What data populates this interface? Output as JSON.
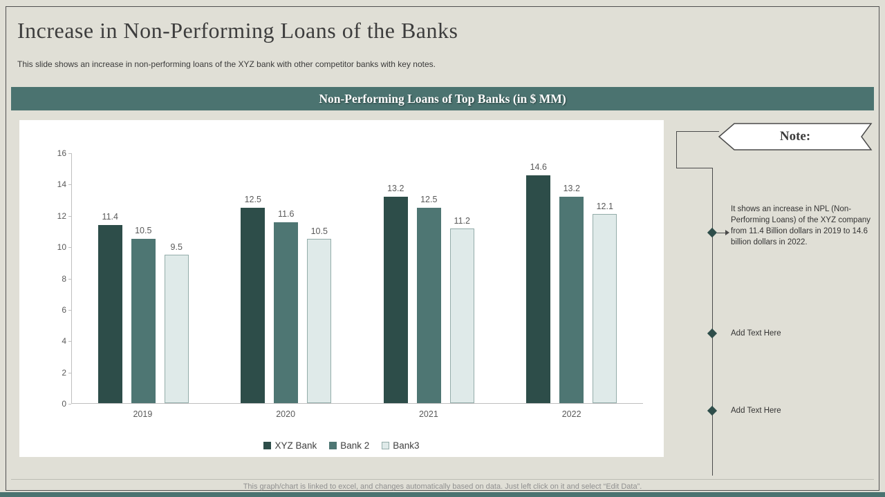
{
  "slide": {
    "title": "Increase in Non-Performing Loans of the Banks",
    "subtitle": "This slide shows an increase in non-performing loans of the XYZ  bank with other competitor banks with key notes.",
    "section_banner": "Non-Performing Loans of Top Banks (in $ MM)",
    "footer_note": "This graph/chart is linked to excel,  and changes automatically based on data. Just left click on it and select “Edit Data”."
  },
  "note_panel": {
    "title": "Note:",
    "items": [
      "It shows an increase in NPL (Non-Performing  Loans) of the XYZ company from 11.4 Billion dollars in 2019 to 14.6 billion dollars in 2022.",
      "Add Text Here",
      "Add Text Here"
    ]
  },
  "colors": {
    "slide_background": "#e0dfd6",
    "banner_background": "#4b7370",
    "bottom_strip": "#4a7370",
    "diamond_bullet": "#2e4d4a"
  },
  "chart_data": {
    "type": "bar",
    "title": "Non-Performing Loans of Top Banks (in $ MM)",
    "categories": [
      "2019",
      "2020",
      "2021",
      "2022"
    ],
    "series": [
      {
        "name": "XYZ Bank",
        "color": "#2d4d49",
        "values": [
          11.4,
          12.5,
          13.2,
          14.6
        ]
      },
      {
        "name": "Bank 2",
        "color": "#4e7673",
        "values": [
          10.5,
          11.6,
          12.5,
          13.2
        ]
      },
      {
        "name": "Bank3",
        "color": "#dfeae9",
        "border": "#93aca9",
        "values": [
          9.5,
          10.5,
          11.2,
          12.1
        ]
      }
    ],
    "ylim": [
      0,
      16
    ],
    "ytick_step": 2,
    "grid": false,
    "legend_position": "bottom",
    "value_labels": true,
    "xlabel": "",
    "ylabel": ""
  }
}
